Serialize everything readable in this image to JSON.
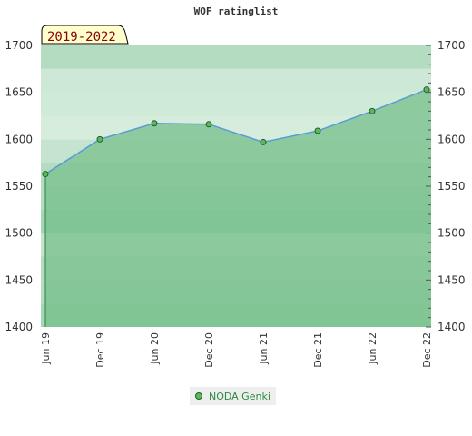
{
  "chart_data": {
    "type": "line",
    "title": "WOF ratinglist",
    "period_label": "2019-2022",
    "ylim": [
      1400,
      1700
    ],
    "yticks": [
      1400,
      1450,
      1500,
      1550,
      1600,
      1650,
      1700
    ],
    "x": [
      "Jun 19",
      "Dec 19",
      "Jun 20",
      "Dec 20",
      "Jun 21",
      "Dec 21",
      "Jun 22",
      "Dec 22"
    ],
    "series": [
      {
        "name": "NODA Genki",
        "values": [
          1563,
          1600,
          1617,
          1616,
          1597,
          1609,
          1630,
          1653
        ]
      }
    ],
    "grid": true,
    "legend": "bottom-center"
  },
  "colors": {
    "line": "#5b9bd5",
    "marker": "#5cb85c",
    "marker_edge": "#1f5f2a",
    "fill": "#79c08c",
    "band_light": "#e6f4ea",
    "band_mid": "#b3dcc0",
    "band_dark": "#7ec896",
    "band_darkest": "#68bb83"
  }
}
